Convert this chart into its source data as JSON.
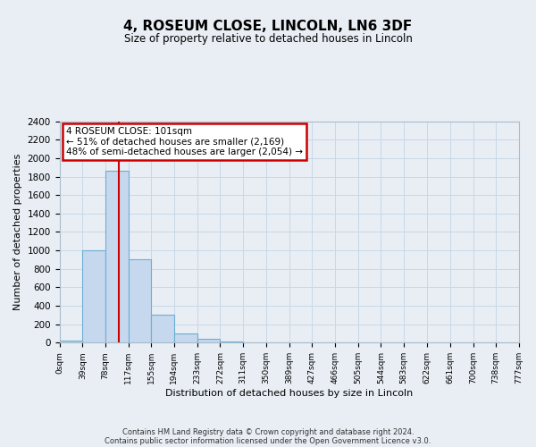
{
  "title": "4, ROSEUM CLOSE, LINCOLN, LN6 3DF",
  "subtitle": "Size of property relative to detached houses in Lincoln",
  "xlabel": "Distribution of detached houses by size in Lincoln",
  "ylabel": "Number of detached properties",
  "footer_lines": [
    "Contains HM Land Registry data © Crown copyright and database right 2024.",
    "Contains public sector information licensed under the Open Government Licence v3.0."
  ],
  "bin_edges": [
    0,
    39,
    78,
    117,
    155,
    194,
    233,
    272,
    311,
    350,
    389,
    427,
    466,
    505,
    544,
    583,
    622,
    661,
    700,
    738,
    777
  ],
  "bin_counts": [
    20,
    1000,
    1860,
    900,
    300,
    100,
    40,
    15,
    5,
    2,
    0,
    0,
    0,
    0,
    0,
    0,
    0,
    0,
    0,
    0
  ],
  "tick_labels": [
    "0sqm",
    "39sqm",
    "78sqm",
    "117sqm",
    "155sqm",
    "194sqm",
    "233sqm",
    "272sqm",
    "311sqm",
    "350sqm",
    "389sqm",
    "427sqm",
    "466sqm",
    "505sqm",
    "544sqm",
    "583sqm",
    "622sqm",
    "661sqm",
    "700sqm",
    "738sqm",
    "777sqm"
  ],
  "bar_color": "#c5d8ed",
  "bar_edge_color": "#6aaed6",
  "vline_x": 101,
  "vline_color": "#cc0000",
  "annotation_title": "4 ROSEUM CLOSE: 101sqm",
  "annotation_line1": "← 51% of detached houses are smaller (2,169)",
  "annotation_line2": "48% of semi-detached houses are larger (2,054) →",
  "annotation_box_color": "#ffffff",
  "annotation_border_color": "#cc0000",
  "ylim": [
    0,
    2400
  ],
  "yticks": [
    0,
    200,
    400,
    600,
    800,
    1000,
    1200,
    1400,
    1600,
    1800,
    2000,
    2200,
    2400
  ],
  "grid_color": "#c8d8e8",
  "background_color": "#e8eef4"
}
